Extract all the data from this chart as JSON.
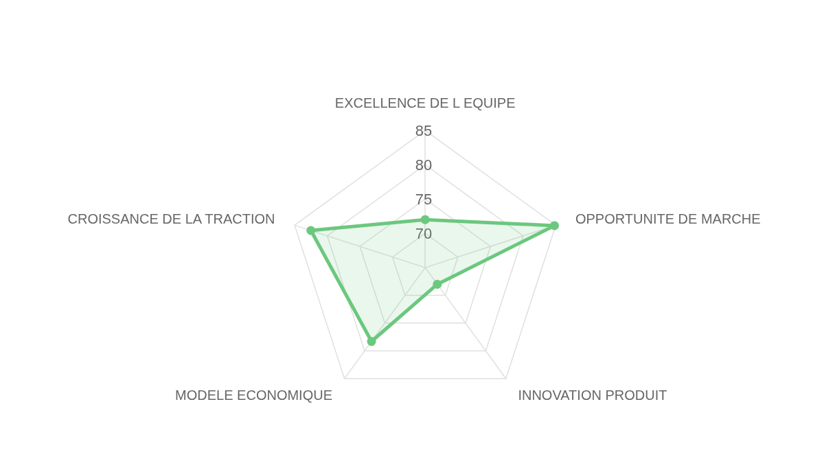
{
  "chart_data": {
    "type": "radar",
    "categories": [
      "EXCELLENCE DE L EQUIPE",
      "OPPORTUNITE DE MARCHE",
      "INNOVATION PRODUIT",
      "MODELE ECONOMIQUE",
      "CROISSANCE DE LA TRACTION"
    ],
    "series": [
      {
        "color": "#6cc87e",
        "values": [
          72,
          84.8,
          68,
          78.3,
          82.5
        ]
      }
    ],
    "ylim": [
      65,
      85
    ],
    "yticks": [
      70,
      75,
      80,
      85
    ],
    "marker": "circle"
  }
}
